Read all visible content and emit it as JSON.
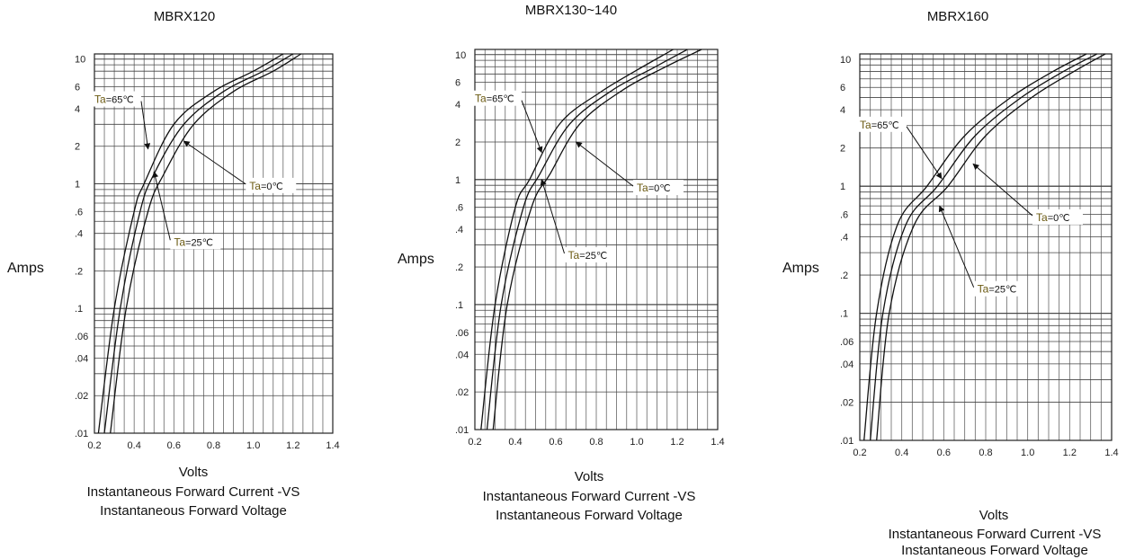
{
  "chart_data": [
    {
      "type": "line",
      "title": "MBRX120",
      "ylabel": "Amps",
      "xlabel": "Volts",
      "caption": [
        "Instantaneous Forward Current -VS",
        "Instantaneous Forward Voltage"
      ],
      "y_scale": "log",
      "xlim": [
        0.2,
        1.4
      ],
      "ylim": [
        0.01,
        11
      ],
      "x_ticks": [
        "0.2",
        "0.4",
        "0.6",
        "0.8",
        "1.0",
        "1.2",
        "1.4"
      ],
      "y_ticks": [
        {
          "v": 10,
          "label": "10"
        },
        {
          "v": 6,
          "label": "6"
        },
        {
          "v": 4,
          "label": "4"
        },
        {
          "v": 2,
          "label": "2"
        },
        {
          "v": 1,
          "label": "1"
        },
        {
          "v": 0.6,
          "label": ".6"
        },
        {
          "v": 0.4,
          "label": ".4"
        },
        {
          "v": 0.2,
          "label": ".2"
        },
        {
          "v": 0.1,
          "label": ".1"
        },
        {
          "v": 0.06,
          "label": ".06"
        },
        {
          "v": 0.04,
          "label": ".04"
        },
        {
          "v": 0.02,
          "label": ".02"
        },
        {
          "v": 0.01,
          "label": ".01"
        }
      ],
      "series": [
        {
          "name": "Ta=65°C",
          "points": [
            [
              0.22,
              0.01
            ],
            [
              0.3,
              0.1
            ],
            [
              0.4,
              0.6
            ],
            [
              0.45,
              1.0
            ],
            [
              0.6,
              3.0
            ],
            [
              0.8,
              5.5
            ],
            [
              1.0,
              8.0
            ],
            [
              1.15,
              11
            ]
          ]
        },
        {
          "name": "Ta=25°C",
          "points": [
            [
              0.25,
              0.01
            ],
            [
              0.33,
              0.1
            ],
            [
              0.43,
              0.6
            ],
            [
              0.5,
              1.2
            ],
            [
              0.65,
              3.0
            ],
            [
              0.85,
              5.5
            ],
            [
              1.05,
              8.0
            ],
            [
              1.2,
              11
            ]
          ]
        },
        {
          "name": "Ta=0°C",
          "points": [
            [
              0.28,
              0.01
            ],
            [
              0.36,
              0.1
            ],
            [
              0.47,
              0.6
            ],
            [
              0.55,
              1.2
            ],
            [
              0.7,
              3.0
            ],
            [
              0.9,
              5.5
            ],
            [
              1.1,
              8.0
            ],
            [
              1.24,
              11
            ]
          ]
        }
      ],
      "annotations": [
        {
          "prefix": "Ta",
          "rest": "=65℃",
          "x": 0.2,
          "y": 4.6,
          "arrow_to": [
            0.47,
            1.9
          ]
        },
        {
          "prefix": "Ta",
          "rest": "=25℃",
          "x": 0.6,
          "y": 0.33,
          "arrow_to": [
            0.5,
            1.25
          ]
        },
        {
          "prefix": "Ta",
          "rest": "=0℃",
          "x": 0.98,
          "y": 0.93,
          "arrow_to": [
            0.65,
            2.2
          ]
        }
      ]
    },
    {
      "type": "line",
      "title": "MBRX130~140",
      "ylabel": "Amps",
      "xlabel": "Volts",
      "caption": [
        "Instantaneous Forward Current -VS",
        "Instantaneous Forward Voltage"
      ],
      "y_scale": "log",
      "xlim": [
        0.2,
        1.4
      ],
      "ylim": [
        0.01,
        11
      ],
      "x_ticks": [
        "0.2",
        "0.4",
        "0.6",
        "0.8",
        "1.0",
        "1.2",
        "1.4"
      ],
      "y_ticks": [
        {
          "v": 10,
          "label": "10"
        },
        {
          "v": 6,
          "label": "6"
        },
        {
          "v": 4,
          "label": "4"
        },
        {
          "v": 2,
          "label": "2"
        },
        {
          "v": 1,
          "label": "1"
        },
        {
          "v": 0.6,
          "label": ".6"
        },
        {
          "v": 0.4,
          "label": ".4"
        },
        {
          "v": 0.2,
          "label": ".2"
        },
        {
          "v": 0.1,
          "label": ".1"
        },
        {
          "v": 0.06,
          "label": ".06"
        },
        {
          "v": 0.04,
          "label": ".04"
        },
        {
          "v": 0.02,
          "label": ".02"
        },
        {
          "v": 0.01,
          "label": ".01"
        }
      ],
      "series": [
        {
          "name": "Ta=65°C",
          "points": [
            [
              0.23,
              0.01
            ],
            [
              0.3,
              0.1
            ],
            [
              0.4,
              0.6
            ],
            [
              0.47,
              1.0
            ],
            [
              0.62,
              2.8
            ],
            [
              0.82,
              5.0
            ],
            [
              1.0,
              7.5
            ],
            [
              1.18,
              11
            ]
          ]
        },
        {
          "name": "Ta=25°C",
          "points": [
            [
              0.26,
              0.01
            ],
            [
              0.33,
              0.1
            ],
            [
              0.44,
              0.6
            ],
            [
              0.52,
              1.1
            ],
            [
              0.67,
              2.8
            ],
            [
              0.88,
              5.2
            ],
            [
              1.08,
              7.8
            ],
            [
              1.25,
              11
            ]
          ]
        },
        {
          "name": "Ta=0°C",
          "points": [
            [
              0.29,
              0.01
            ],
            [
              0.36,
              0.1
            ],
            [
              0.48,
              0.6
            ],
            [
              0.57,
              1.1
            ],
            [
              0.72,
              2.8
            ],
            [
              0.93,
              5.2
            ],
            [
              1.13,
              7.8
            ],
            [
              1.32,
              11
            ]
          ]
        }
      ],
      "annotations": [
        {
          "prefix": "Ta",
          "rest": "=65℃",
          "x": 0.2,
          "y": 4.3,
          "arrow_to": [
            0.53,
            1.65
          ]
        },
        {
          "prefix": "Ta",
          "rest": "=25℃",
          "x": 0.66,
          "y": 0.24,
          "arrow_to": [
            0.53,
            1.0
          ]
        },
        {
          "prefix": "Ta",
          "rest": "=0℃",
          "x": 1.0,
          "y": 0.83,
          "arrow_to": [
            0.7,
            2.0
          ]
        }
      ]
    },
    {
      "type": "line",
      "title": "MBRX160",
      "ylabel": "Amps",
      "xlabel": "Volts",
      "caption": [
        "Instantaneous Forward Current -VS",
        "Instantaneous Forward Voltage"
      ],
      "y_scale": "log",
      "xlim": [
        0.2,
        1.4
      ],
      "ylim": [
        0.01,
        11
      ],
      "x_ticks": [
        "0.2",
        "0.4",
        "0.6",
        "0.8",
        "1.0",
        "1.2",
        "1.4"
      ],
      "y_ticks": [
        {
          "v": 10,
          "label": "10"
        },
        {
          "v": 6,
          "label": "6"
        },
        {
          "v": 4,
          "label": "4"
        },
        {
          "v": 2,
          "label": "2"
        },
        {
          "v": 1,
          "label": "1"
        },
        {
          "v": 0.6,
          "label": ".6"
        },
        {
          "v": 0.4,
          "label": ".4"
        },
        {
          "v": 0.2,
          "label": ".2"
        },
        {
          "v": 0.1,
          "label": ".1"
        },
        {
          "v": 0.06,
          "label": ".06"
        },
        {
          "v": 0.04,
          "label": ".04"
        },
        {
          "v": 0.02,
          "label": ".02"
        },
        {
          "v": 0.01,
          "label": ".01"
        }
      ],
      "series": [
        {
          "name": "Ta=65°C",
          "points": [
            [
              0.22,
              0.01
            ],
            [
              0.28,
              0.1
            ],
            [
              0.38,
              0.5
            ],
            [
              0.52,
              1.0
            ],
            [
              0.7,
              2.5
            ],
            [
              0.92,
              5.0
            ],
            [
              1.12,
              8.0
            ],
            [
              1.28,
              11
            ]
          ]
        },
        {
          "name": "Ta=25°C",
          "points": [
            [
              0.25,
              0.01
            ],
            [
              0.31,
              0.1
            ],
            [
              0.42,
              0.5
            ],
            [
              0.57,
              1.0
            ],
            [
              0.75,
              2.5
            ],
            [
              0.97,
              5.0
            ],
            [
              1.17,
              8.0
            ],
            [
              1.33,
              11
            ]
          ]
        },
        {
          "name": "Ta=0°C",
          "points": [
            [
              0.28,
              0.01
            ],
            [
              0.34,
              0.1
            ],
            [
              0.46,
              0.5
            ],
            [
              0.62,
              1.0
            ],
            [
              0.8,
              2.5
            ],
            [
              1.02,
              5.0
            ],
            [
              1.22,
              8.0
            ],
            [
              1.37,
              11
            ]
          ]
        }
      ],
      "annotations": [
        {
          "prefix": "Ta",
          "rest": "=65℃",
          "x": 0.2,
          "y": 2.95,
          "arrow_to": [
            0.59,
            1.15
          ]
        },
        {
          "prefix": "Ta",
          "rest": "=25℃",
          "x": 0.76,
          "y": 0.15,
          "arrow_to": [
            0.58,
            0.7
          ]
        },
        {
          "prefix": "Ta",
          "rest": "=0℃",
          "x": 1.04,
          "y": 0.55,
          "arrow_to": [
            0.74,
            1.5
          ]
        }
      ]
    }
  ]
}
